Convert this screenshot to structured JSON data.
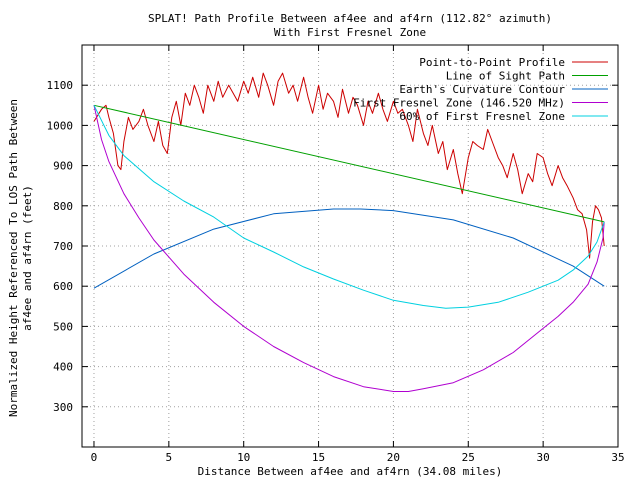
{
  "chart_data": {
    "type": "line",
    "title": "SPLAT! Path Profile Between af4ee and af4rn (112.82° azimuth)",
    "subtitle": "With First Fresnel Zone",
    "xlabel": "Distance Between af4ee and af4rn (34.08 miles)",
    "ylabel_lines": [
      "Normalized Height Referenced To LOS Path Between",
      "af4ee and af4rn (feet)"
    ],
    "xlim": [
      -0.8,
      35
    ],
    "ylim": [
      200,
      1200
    ],
    "x_ticks": [
      0,
      5,
      10,
      15,
      20,
      25,
      30,
      35
    ],
    "y_ticks": [
      300,
      400,
      500,
      600,
      700,
      800,
      900,
      1000,
      1100
    ],
    "grid": true,
    "legend_position": "top-right",
    "series": [
      {
        "name": "Point-to-Point Profile",
        "color": "#cc0000",
        "x": [
          0,
          0.5,
          0.8,
          1.0,
          1.3,
          1.6,
          1.8,
          2.0,
          2.3,
          2.6,
          3.0,
          3.3,
          3.6,
          4.0,
          4.3,
          4.6,
          4.9,
          5.2,
          5.5,
          5.8,
          6.1,
          6.4,
          6.7,
          7.0,
          7.3,
          7.6,
          8.0,
          8.3,
          8.6,
          9.0,
          9.3,
          9.6,
          10.0,
          10.3,
          10.6,
          11.0,
          11.3,
          11.6,
          12.0,
          12.3,
          12.6,
          13.0,
          13.3,
          13.6,
          14.0,
          14.3,
          14.6,
          15.0,
          15.3,
          15.6,
          16.0,
          16.3,
          16.6,
          17.0,
          17.3,
          17.6,
          18.0,
          18.3,
          18.6,
          19.0,
          19.3,
          19.6,
          20.0,
          20.3,
          20.6,
          21.0,
          21.3,
          21.6,
          22.0,
          22.3,
          22.6,
          23.0,
          23.3,
          23.6,
          24.0,
          24.3,
          24.6,
          25.0,
          25.3,
          25.6,
          26.0,
          26.3,
          26.6,
          27.0,
          27.3,
          27.6,
          28.0,
          28.3,
          28.6,
          29.0,
          29.3,
          29.6,
          30.0,
          30.3,
          30.6,
          31.0,
          31.3,
          31.6,
          32.0,
          32.3,
          32.6,
          32.9,
          33.1,
          33.3,
          33.5,
          33.7,
          33.9,
          34.08
        ],
        "values": [
          1010,
          1040,
          1050,
          1020,
          980,
          900,
          890,
          960,
          1020,
          990,
          1010,
          1040,
          1000,
          960,
          1010,
          950,
          930,
          1020,
          1060,
          1000,
          1080,
          1050,
          1100,
          1070,
          1030,
          1100,
          1060,
          1110,
          1070,
          1100,
          1080,
          1060,
          1110,
          1080,
          1120,
          1070,
          1130,
          1100,
          1050,
          1110,
          1130,
          1080,
          1100,
          1060,
          1120,
          1070,
          1030,
          1100,
          1040,
          1080,
          1060,
          1020,
          1090,
          1030,
          1070,
          1050,
          1000,
          1060,
          1030,
          1080,
          1040,
          1010,
          1060,
          1030,
          1040,
          1000,
          960,
          1040,
          980,
          950,
          1000,
          930,
          960,
          890,
          940,
          880,
          830,
          920,
          960,
          950,
          940,
          990,
          960,
          920,
          900,
          870,
          930,
          890,
          830,
          880,
          860,
          930,
          920,
          880,
          850,
          900,
          870,
          850,
          820,
          790,
          780,
          740,
          670,
          760,
          800,
          790,
          770,
          700
        ],
        "note": "values approximate (noisy terrain trace)"
      },
      {
        "name": "Line of Sight Path",
        "color": "#00a000",
        "x": [
          0,
          34.08
        ],
        "values": [
          1050,
          760
        ]
      },
      {
        "name": "Earth's Curvature Contour",
        "color": "#0060c0",
        "x": [
          0,
          4,
          8,
          12,
          16,
          17.8,
          20,
          24,
          28,
          32,
          34.08
        ],
        "values": [
          595,
          680,
          742,
          780,
          792,
          792,
          788,
          765,
          720,
          650,
          600
        ]
      },
      {
        "name": "First Fresnel Zone (146.520 MHz)",
        "color": "#b000d0",
        "x": [
          0,
          0.5,
          1,
          2,
          3,
          4,
          6,
          8,
          10,
          12,
          14,
          16,
          18,
          20,
          21,
          22,
          24,
          26,
          28,
          30,
          31,
          32,
          33,
          33.6,
          34.0,
          34.08
        ],
        "values": [
          1050,
          965,
          910,
          830,
          770,
          715,
          630,
          560,
          500,
          450,
          410,
          375,
          350,
          338,
          338,
          345,
          360,
          392,
          435,
          495,
          525,
          560,
          605,
          660,
          720,
          760
        ]
      },
      {
        "name": "60% of First Fresnel Zone",
        "color": "#00d0e0",
        "x": [
          0,
          1,
          2,
          4,
          6,
          8,
          10,
          12,
          14,
          16,
          18,
          20,
          22,
          23.5,
          25,
          27,
          29,
          31,
          32,
          33,
          33.6,
          34.08
        ],
        "values": [
          1050,
          975,
          925,
          860,
          812,
          772,
          720,
          685,
          648,
          618,
          590,
          565,
          552,
          545,
          548,
          560,
          585,
          615,
          640,
          675,
          710,
          760
        ]
      }
    ]
  }
}
